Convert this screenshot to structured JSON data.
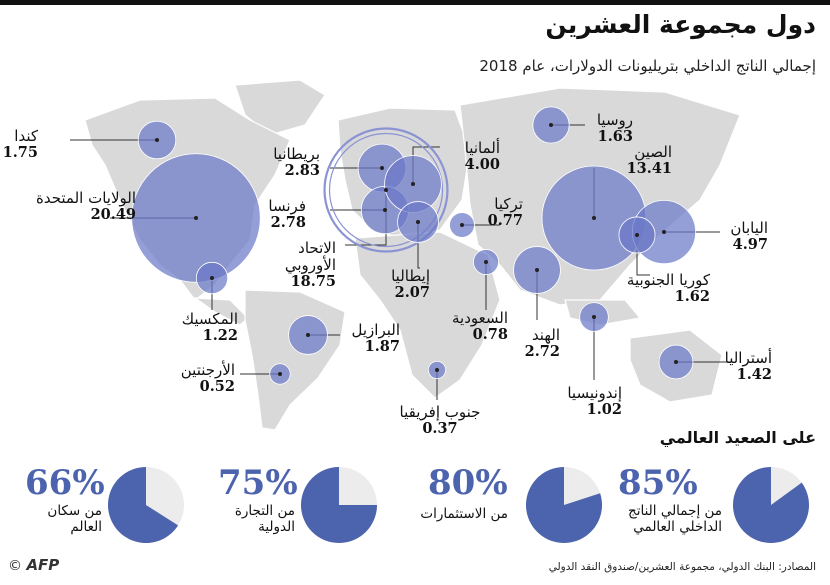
{
  "header": {
    "title": "دول مجموعة العشرين",
    "subtitle": "إجمالي الناتج الداخلي بتريليونات الدولارات، عام 2018"
  },
  "chart_data": {
    "type": "proportional-symbol-map",
    "unit": "trillion USD",
    "year": 2018,
    "countries": [
      {
        "id": "canada",
        "name": "كندا",
        "value": "1.75"
      },
      {
        "id": "usa",
        "name": "الولايات المتحدة",
        "value": "20.49"
      },
      {
        "id": "mexico",
        "name": "المكسيك",
        "value": "1.22"
      },
      {
        "id": "brazil",
        "name": "البرازيل",
        "value": "1.87"
      },
      {
        "id": "argentina",
        "name": "الأرجنتين",
        "value": "0.52"
      },
      {
        "id": "uk",
        "name": "بريطانيا",
        "value": "2.83"
      },
      {
        "id": "france",
        "name": "فرنسا",
        "value": "2.78"
      },
      {
        "id": "eu",
        "name": "الاتحاد الأوروبي",
        "value": "18.75"
      },
      {
        "id": "germany",
        "name": "ألمانيا",
        "value": "4.00"
      },
      {
        "id": "italy",
        "name": "إيطاليا",
        "value": "2.07"
      },
      {
        "id": "turkey",
        "name": "تركيا",
        "value": "0.77"
      },
      {
        "id": "saudi",
        "name": "السعودية",
        "value": "0.78"
      },
      {
        "id": "southafrica",
        "name": "جنوب إفريقيا",
        "value": "0.37"
      },
      {
        "id": "russia",
        "name": "روسيا",
        "value": "1.63"
      },
      {
        "id": "china",
        "name": "الصين",
        "value": "13.41"
      },
      {
        "id": "japan",
        "name": "اليابان",
        "value": "4.97"
      },
      {
        "id": "korea",
        "name": "كوريا الجنوبية",
        "value": "1.62"
      },
      {
        "id": "india",
        "name": "الهند",
        "value": "2.72"
      },
      {
        "id": "indonesia",
        "name": "إندونيسيا",
        "value": "1.02"
      },
      {
        "id": "australia",
        "name": "أستراليا",
        "value": "1.42"
      }
    ],
    "globe": {
      "title": "على الصعيد العالمي",
      "shares": [
        {
          "id": "gdp",
          "pct": 85,
          "text": "85%",
          "line1": "من إجمالي الناتج",
          "line2": "الداخلي العالمي"
        },
        {
          "id": "invest",
          "pct": 80,
          "text": "80%",
          "line1": "من الاستثمارات",
          "line2": ""
        },
        {
          "id": "trade",
          "pct": 75,
          "text": "75%",
          "line1": "من التجارة",
          "line2": "الدولية"
        },
        {
          "id": "pop",
          "pct": 66,
          "text": "66%",
          "line1": "من سكان",
          "line2": "العالم"
        }
      ]
    },
    "colors": {
      "bubble": "#6b78c8",
      "pie": "#4c63ad",
      "pie_bg": "#ececec",
      "land": "#d9d9d9",
      "line": "#333333"
    }
  },
  "footer": {
    "source": "المصادر: البنك الدولي، مجموعة العشرين/صندوق النقد الدولي",
    "logo": "AFP",
    "copyright": "©"
  }
}
